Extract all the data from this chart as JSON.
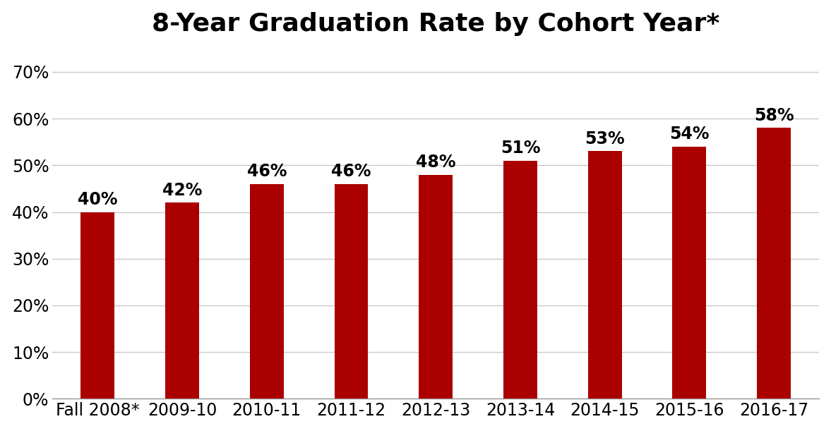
{
  "title": "8-Year Graduation Rate by Cohort Year*",
  "categories": [
    "Fall 2008*",
    "2009-10",
    "2010-11",
    "2011-12",
    "2012-13",
    "2013-14",
    "2014-15",
    "2015-16",
    "2016-17"
  ],
  "values": [
    0.4,
    0.42,
    0.46,
    0.46,
    0.48,
    0.51,
    0.53,
    0.54,
    0.58
  ],
  "labels": [
    "40%",
    "42%",
    "46%",
    "46%",
    "48%",
    "51%",
    "53%",
    "54%",
    "58%"
  ],
  "bar_color": "#AA0000",
  "background_color": "#FFFFFF",
  "ylim": [
    0,
    0.75
  ],
  "yticks": [
    0.0,
    0.1,
    0.2,
    0.3,
    0.4,
    0.5,
    0.6,
    0.7
  ],
  "ytick_labels": [
    "0%",
    "10%",
    "20%",
    "30%",
    "40%",
    "50%",
    "60%",
    "70%"
  ],
  "title_fontsize": 26,
  "tick_fontsize": 17,
  "label_fontsize": 17,
  "grid_color": "#C8C8C8",
  "grid_linewidth": 1.0,
  "bar_width": 0.4
}
